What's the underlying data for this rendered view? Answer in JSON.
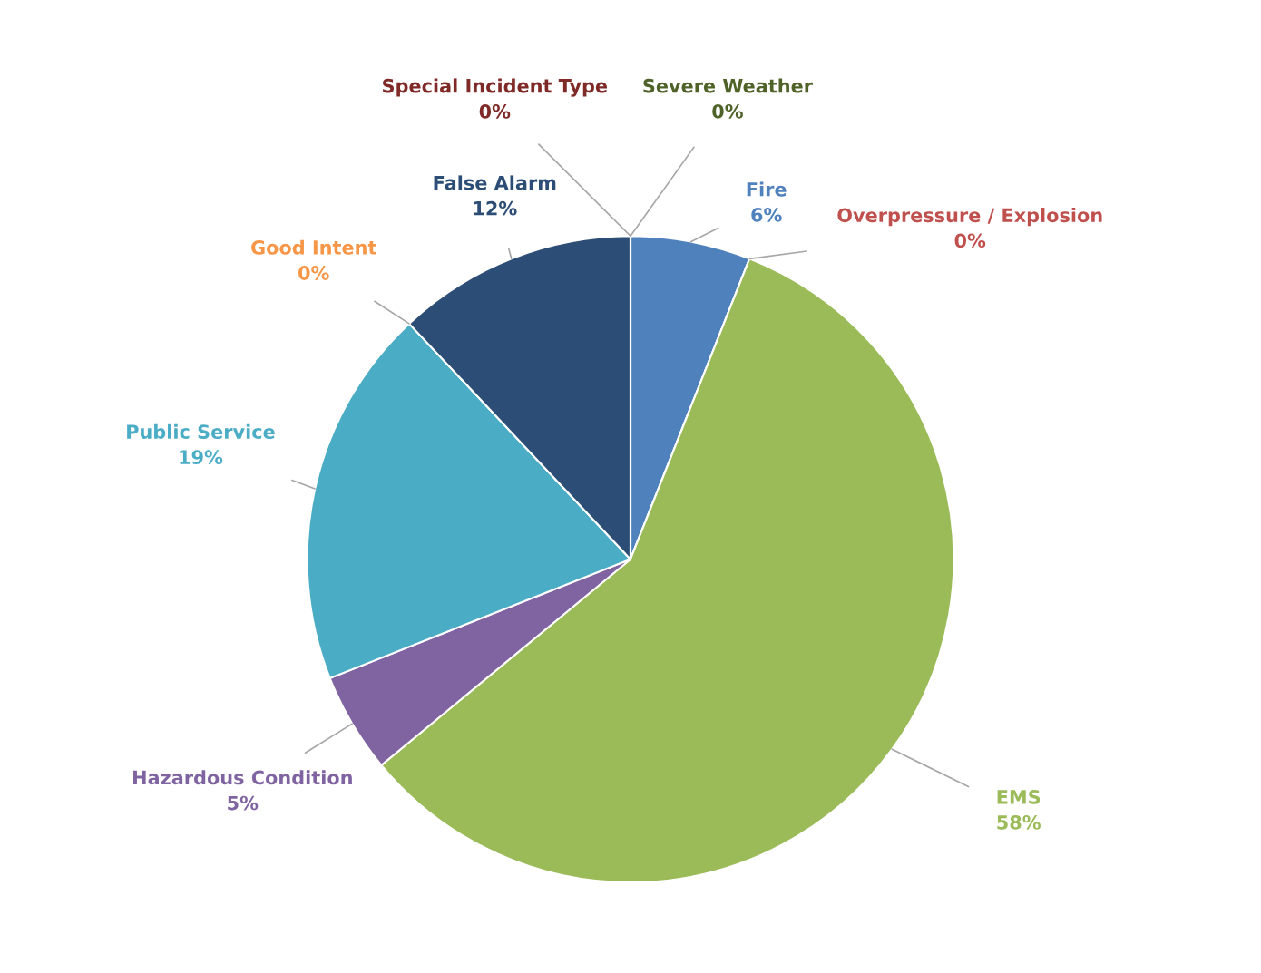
{
  "chart_data": {
    "type": "pie",
    "categories": [
      "Fire",
      "Overpressure / Explosion",
      "EMS",
      "Hazardous Condition",
      "Public Service",
      "Good Intent",
      "False Alarm",
      "Special Incident Type",
      "Severe Weather"
    ],
    "values": [
      6,
      0,
      58,
      5,
      19,
      0,
      12,
      0,
      0
    ],
    "value_labels": [
      "6%",
      "0%",
      "58%",
      "5%",
      "19%",
      "0%",
      "12%",
      "0%",
      "0%"
    ],
    "colors": [
      "#4f81bd",
      "#c0504d",
      "#9bbb59",
      "#8064a2",
      "#4bacc6",
      "#f79646",
      "#2c4d75",
      "#7f2a26",
      "#4f6228"
    ],
    "legend": false
  }
}
